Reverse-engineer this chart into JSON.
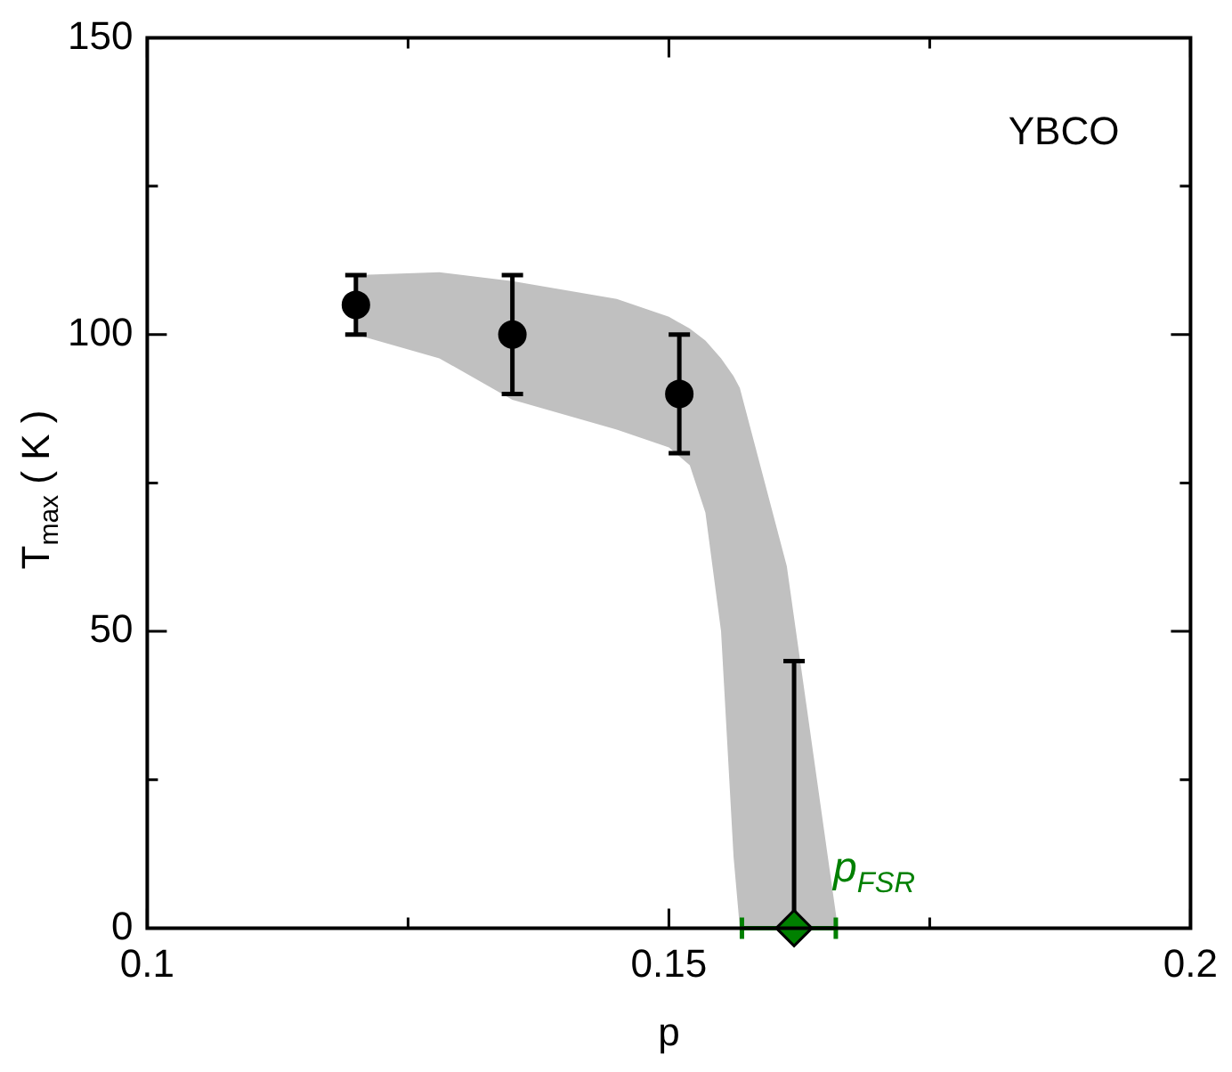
{
  "chart_data": {
    "type": "scatter",
    "xlabel": "p",
    "ylabel": "T$_{max}$ ( K )",
    "xlim": [
      0.1,
      0.2
    ],
    "xticks": [
      0.1,
      {
        "value": 0.125,
        "label": null
      },
      0.15,
      {
        "value": 0.175,
        "label": null
      },
      0.2
    ],
    "ylim": [
      0,
      150
    ],
    "yticks": [
      0,
      {
        "value": 25,
        "label": null
      },
      50,
      {
        "value": 75,
        "label": null
      },
      100,
      {
        "value": 125,
        "label": null
      },
      150
    ],
    "grid": false,
    "legend": false,
    "annotations": [
      "YBCO",
      {
        "text": "p$_{FSR}$",
        "x": 0.162,
        "y": 0
      }
    ],
    "series": [
      {
        "type": "line",
        "color": "#c0c0c0",
        "x": [
          0.12,
          0.128,
          0.135,
          0.145,
          0.15,
          0.152,
          0.1535,
          0.155,
          0.1562,
          0.1568,
          0.1613,
          0.1662
        ],
        "values": [
          null,
          null,
          null,
          null,
          null,
          null,
          null,
          null,
          null,
          null,
          null,
          null
        ],
        "upper": [
          110,
          110.5,
          109,
          106,
          103,
          101,
          99,
          96,
          93,
          91,
          61,
          0
        ],
        "lower": [
          100,
          96,
          89,
          84,
          81,
          78,
          70,
          50,
          12,
          0,
          0,
          0
        ]
      },
      {
        "color": "#000000",
        "marker": "circle",
        "x": [
          0.12,
          0.135,
          0.151
        ],
        "values": [
          105,
          100,
          90
        ],
        "errors": [
          5,
          10,
          10
        ]
      },
      {
        "color": "#008000",
        "marker": "diamond",
        "x": [
          0.162
        ],
        "values": [
          0
        ],
        "errors": [
          [
            0,
            45
          ]
        ],
        "xerrors": [
          [
            0.157,
            0.166
          ]
        ]
      }
    ]
  }
}
